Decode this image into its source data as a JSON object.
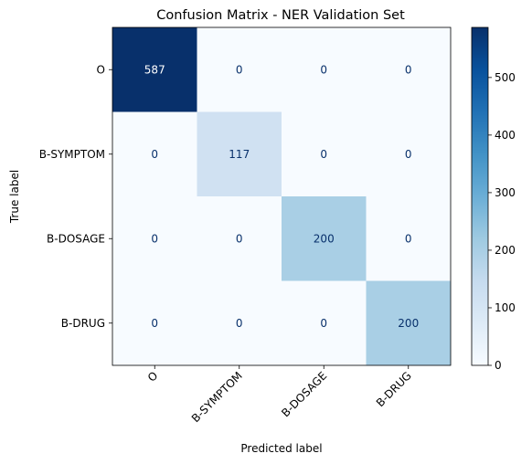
{
  "chart_data": {
    "type": "heatmap",
    "title": "Confusion Matrix - NER Validation Set",
    "xlabel": "Predicted label",
    "ylabel": "True label",
    "row_labels": [
      "O",
      "B-SYMPTOM",
      "B-DOSAGE",
      "B-DRUG"
    ],
    "col_labels": [
      "O",
      "B-SYMPTOM",
      "B-DOSAGE",
      "B-DRUG"
    ],
    "matrix": [
      [
        587,
        0,
        0,
        0
      ],
      [
        0,
        117,
        0,
        0
      ],
      [
        0,
        0,
        200,
        0
      ],
      [
        0,
        0,
        0,
        200
      ]
    ],
    "colormap": "Blues",
    "colorbar": {
      "range": [
        0,
        587
      ],
      "ticks": [
        0,
        100,
        200,
        300,
        400,
        500
      ]
    },
    "text_colors": {
      "dark_cell": "#ffffff",
      "light_cell": "#08306b"
    }
  }
}
